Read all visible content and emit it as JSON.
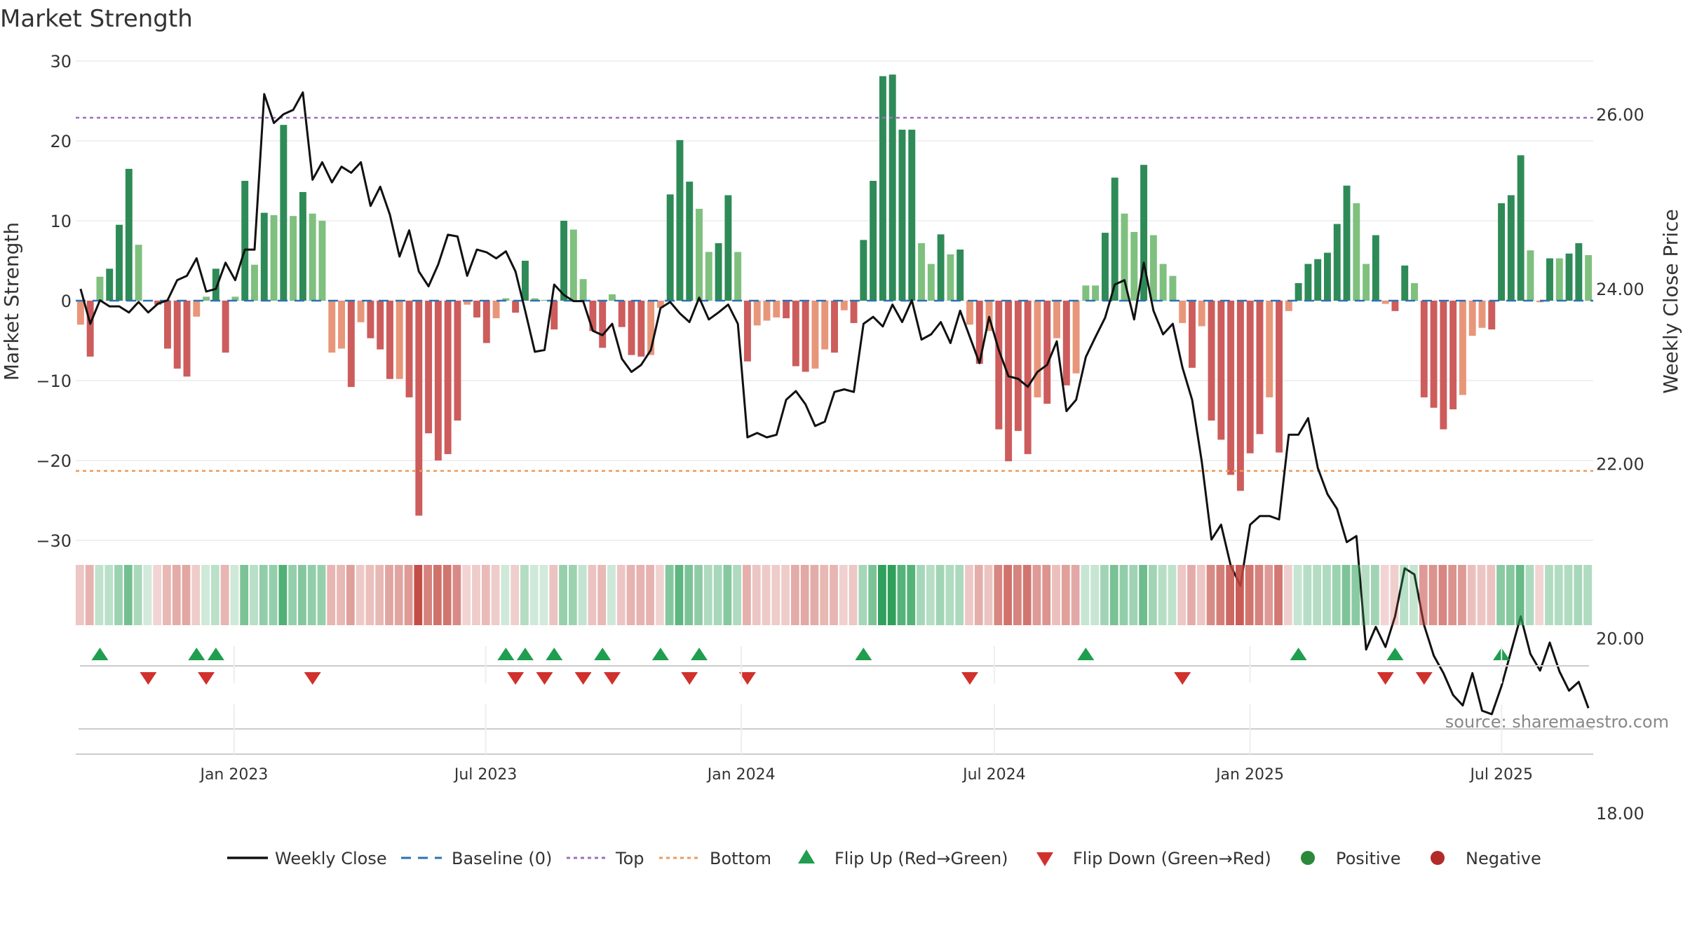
{
  "chart_data": {
    "type": "bar",
    "title": "Market Strength",
    "ylabel_left": "Market Strength",
    "ylabel_right": "Weekly Close Price",
    "ylim_left": [
      -32,
      30
    ],
    "ylim_right": [
      15.8,
      26.9
    ],
    "left_ticks": [
      30,
      20,
      10,
      0,
      -10,
      -20,
      -30
    ],
    "left_tick_labels": [
      "30",
      "20",
      "10",
      "0",
      "−10",
      "−20",
      "−30"
    ],
    "right_ticks": [
      26,
      24,
      22,
      20,
      18
    ],
    "right_tick_labels": [
      "26.00",
      "24.00",
      "22.00",
      "20.00",
      "18.00"
    ],
    "x_start": "2022-09-09",
    "x_end": "2025-09-05",
    "x_ticks": [
      {
        "date": "2023-01-01",
        "label": "Jan 2023"
      },
      {
        "date": "2023-07-01",
        "label": "Jul 2023"
      },
      {
        "date": "2024-01-01",
        "label": "Jan 2024"
      },
      {
        "date": "2024-07-01",
        "label": "Jul 2024"
      },
      {
        "date": "2025-01-01",
        "label": "Jan 2025"
      },
      {
        "date": "2025-07-01",
        "label": "Jul 2025"
      }
    ],
    "top_threshold": 22.9,
    "bottom_threshold": -21.3,
    "baseline": 0,
    "strength": [
      -3,
      -7,
      3,
      4,
      9.5,
      16.5,
      7,
      0,
      -0.5,
      -6,
      -8.5,
      -9.5,
      -2,
      0.5,
      4,
      -6.5,
      0.5,
      15,
      4.5,
      11,
      10.7,
      22,
      10.6,
      13.6,
      10.9,
      10,
      -6.5,
      -6,
      -10.8,
      -2.7,
      -4.7,
      -6.1,
      -9.8,
      -9.8,
      -12.1,
      -26.9,
      -16.6,
      -20,
      -19.2,
      -15,
      -0.5,
      -2.1,
      -5.3,
      -2.2,
      0.3,
      -1.5,
      5,
      0.3,
      0.1,
      -3.6,
      10,
      8.9,
      2.7,
      -3.8,
      -5.9,
      0.8,
      -3.3,
      -6.8,
      -7,
      -6.8,
      -0.9,
      13.3,
      20.1,
      14.9,
      11.5,
      6.1,
      7.2,
      13.2,
      6.1,
      -7.6,
      -3.1,
      -2.5,
      -2.1,
      -2.2,
      -8.2,
      -8.9,
      -8.5,
      -6.1,
      -6.5,
      -1.2,
      -2.8,
      7.6,
      15,
      28.1,
      28.3,
      21.4,
      21.4,
      7.2,
      4.6,
      8.3,
      5.8,
      6.4,
      -3,
      -7.9,
      -3.8,
      -16.1,
      -20.1,
      -16.3,
      -19.2,
      -12.1,
      -12.9,
      -4.7,
      -10.6,
      -9.1,
      1.9,
      1.9,
      8.5,
      15.4,
      10.9,
      8.6,
      17,
      8.2,
      4.6,
      3.1,
      -2.8,
      -8.4,
      -3.2,
      -15,
      -17.4,
      -21.8,
      -23.8,
      -19.1,
      -16.7,
      -12.1,
      -19,
      -1.3,
      2.2,
      4.6,
      5.2,
      6,
      9.6,
      14.4,
      12.2,
      4.6,
      8.2,
      -0.4,
      -1.3,
      4.4,
      2.2,
      -12.1,
      -13.4,
      -16.1,
      -13.6,
      -11.8,
      -4.4,
      -3.4,
      -3.6,
      12.2,
      13.2,
      18.2,
      6.3,
      -0.2,
      5.3,
      5.3,
      5.9,
      7.2,
      5.7
    ],
    "weekly_close": [
      24.0,
      23.6,
      23.87,
      23.8,
      23.8,
      23.73,
      23.85,
      23.73,
      23.83,
      23.87,
      24.1,
      24.15,
      24.35,
      23.97,
      24.0,
      24.3,
      24.1,
      24.45,
      24.45,
      26.23,
      25.9,
      26.0,
      26.05,
      26.25,
      25.25,
      25.45,
      25.22,
      25.4,
      25.33,
      25.45,
      24.95,
      25.17,
      24.85,
      24.37,
      24.67,
      24.2,
      24.03,
      24.28,
      24.62,
      24.6,
      24.15,
      24.45,
      24.42,
      24.35,
      24.43,
      24.2,
      23.75,
      23.28,
      23.3,
      24.05,
      23.93,
      23.86,
      23.86,
      23.52,
      23.47,
      23.6,
      23.2,
      23.05,
      23.13,
      23.3,
      23.78,
      23.85,
      23.72,
      23.62,
      23.9,
      23.65,
      23.73,
      23.82,
      23.6,
      22.3,
      22.35,
      22.3,
      22.33,
      22.73,
      22.83,
      22.68,
      22.43,
      22.48,
      22.82,
      22.85,
      22.82,
      23.6,
      23.68,
      23.57,
      23.82,
      23.62,
      23.87,
      23.42,
      23.48,
      23.62,
      23.38,
      23.75,
      23.45,
      23.15,
      23.68,
      23.3,
      23.0,
      22.97,
      22.88,
      23.05,
      23.13,
      23.4,
      22.6,
      22.73,
      23.22,
      23.45,
      23.67,
      24.05,
      24.1,
      23.65,
      24.3,
      23.75,
      23.48,
      23.6,
      23.1,
      22.73,
      22.02,
      21.13,
      21.3,
      20.83,
      20.6,
      21.3,
      21.4,
      21.4,
      21.36,
      22.33,
      22.33,
      22.52,
      21.95,
      21.65,
      21.48,
      21.1,
      21.17,
      19.87,
      20.13,
      19.9,
      20.25,
      20.8,
      20.73,
      20.15,
      19.8,
      19.6,
      19.35,
      19.23,
      19.6,
      19.17,
      19.13,
      19.45,
      19.85,
      20.25,
      19.82,
      19.63,
      19.95,
      19.62,
      19.4,
      19.5,
      19.2
    ],
    "flip_up_weeks": [
      2,
      12,
      14,
      44,
      46,
      49,
      54,
      60,
      64,
      81,
      104,
      126,
      136,
      147
    ],
    "flip_down_weeks": [
      7,
      13,
      24,
      45,
      48,
      52,
      55,
      63,
      69,
      92,
      114,
      135,
      139
    ],
    "legend": [
      {
        "label": "Weekly Close",
        "kind": "line",
        "color": "#111111"
      },
      {
        "label": "Baseline (0)",
        "kind": "dash",
        "color": "#2a72b0"
      },
      {
        "label": "Top",
        "kind": "dot",
        "color": "#9b6fbf"
      },
      {
        "label": "Bottom",
        "kind": "dot",
        "color": "#ec9a5b"
      },
      {
        "label": "Flip Up (Red→Green)",
        "kind": "tri-up",
        "color": "#1f9e4f"
      },
      {
        "label": "Flip Down (Green→Red)",
        "kind": "tri-down",
        "color": "#d0312d"
      },
      {
        "label": "Positive",
        "kind": "circle",
        "color": "#2a8a3a"
      },
      {
        "label": "Negative",
        "kind": "circle",
        "color": "#b22a2a"
      }
    ],
    "source": "source: sharemaestro.com"
  },
  "colors": {
    "pos_dark": "#2e8b57",
    "pos_light": "#7fc07f",
    "neg_dark": "#cd5c5c",
    "neg_light": "#e8967a",
    "price_line": "#111111",
    "baseline": "#2a72b0",
    "top": "#9b6fbf",
    "bottom": "#ec9a5b",
    "flip_up": "#1f9e4f",
    "flip_down": "#d0312d",
    "grid": "#e6e6e6",
    "axis_text": "#333333"
  }
}
